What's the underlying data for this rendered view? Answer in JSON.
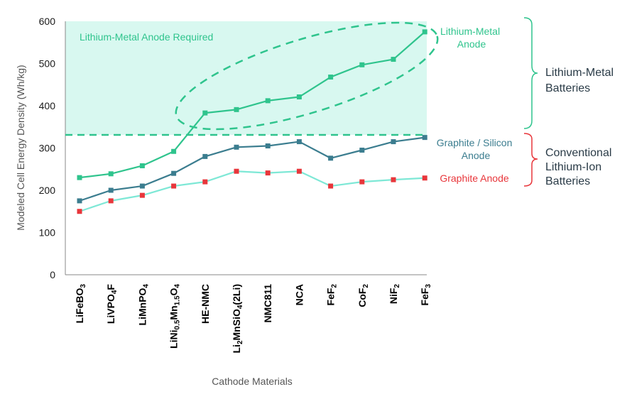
{
  "chart_data": {
    "type": "line",
    "title": "",
    "xlabel": "Cathode Materials",
    "ylabel": "Modeled Cell Energy Density (Wh/kg)",
    "ylim": [
      0,
      600
    ],
    "yticks": [
      0,
      100,
      200,
      300,
      400,
      500,
      600
    ],
    "grid": false,
    "categories": [
      "LiFeBO3",
      "LiVPO4F",
      "LiMnPO4",
      "LiNi0.5Mn1.5O4",
      "HE-NMC",
      "Li2MnSiO4(2Li)",
      "NMC811",
      "NCA",
      "FeF2",
      "CoF2",
      "NiF2",
      "FeF3"
    ],
    "series": [
      {
        "name": "Lithium-Metal Anode",
        "color": "#2fc48d",
        "marker": "square",
        "values": [
          230,
          239,
          258,
          292,
          383,
          391,
          412,
          421,
          468,
          497,
          510,
          575
        ]
      },
      {
        "name": "Graphite / Silicon Anode",
        "color": "#3b7d8f",
        "marker": "square",
        "values": [
          175,
          200,
          210,
          240,
          280,
          302,
          305,
          315,
          276,
          295,
          315,
          325
        ]
      },
      {
        "name": "Graphite Anode",
        "color": "#7ee8d6",
        "marker": "square",
        "marker_color": "#e8363b",
        "values": [
          150,
          175,
          188,
          210,
          220,
          245,
          241,
          245,
          210,
          220,
          225,
          229
        ]
      }
    ],
    "threshold": {
      "value": 330,
      "label": "Lithium-Metal Anode Required",
      "color": "#2fc48d",
      "style": "dashed"
    },
    "shaded_region": {
      "from": 330,
      "to": 600,
      "color": "#d8f8f0"
    },
    "annotations": [
      {
        "text": "Lithium-Metal Batteries",
        "color": "#2a3b47",
        "bracket_color": "#2fc48d",
        "placement": "right-upper"
      },
      {
        "text": "Conventional Lithium-Ion Batteries",
        "color": "#2a3b47",
        "bracket_color": "#e8363b",
        "placement": "right-lower"
      }
    ]
  }
}
